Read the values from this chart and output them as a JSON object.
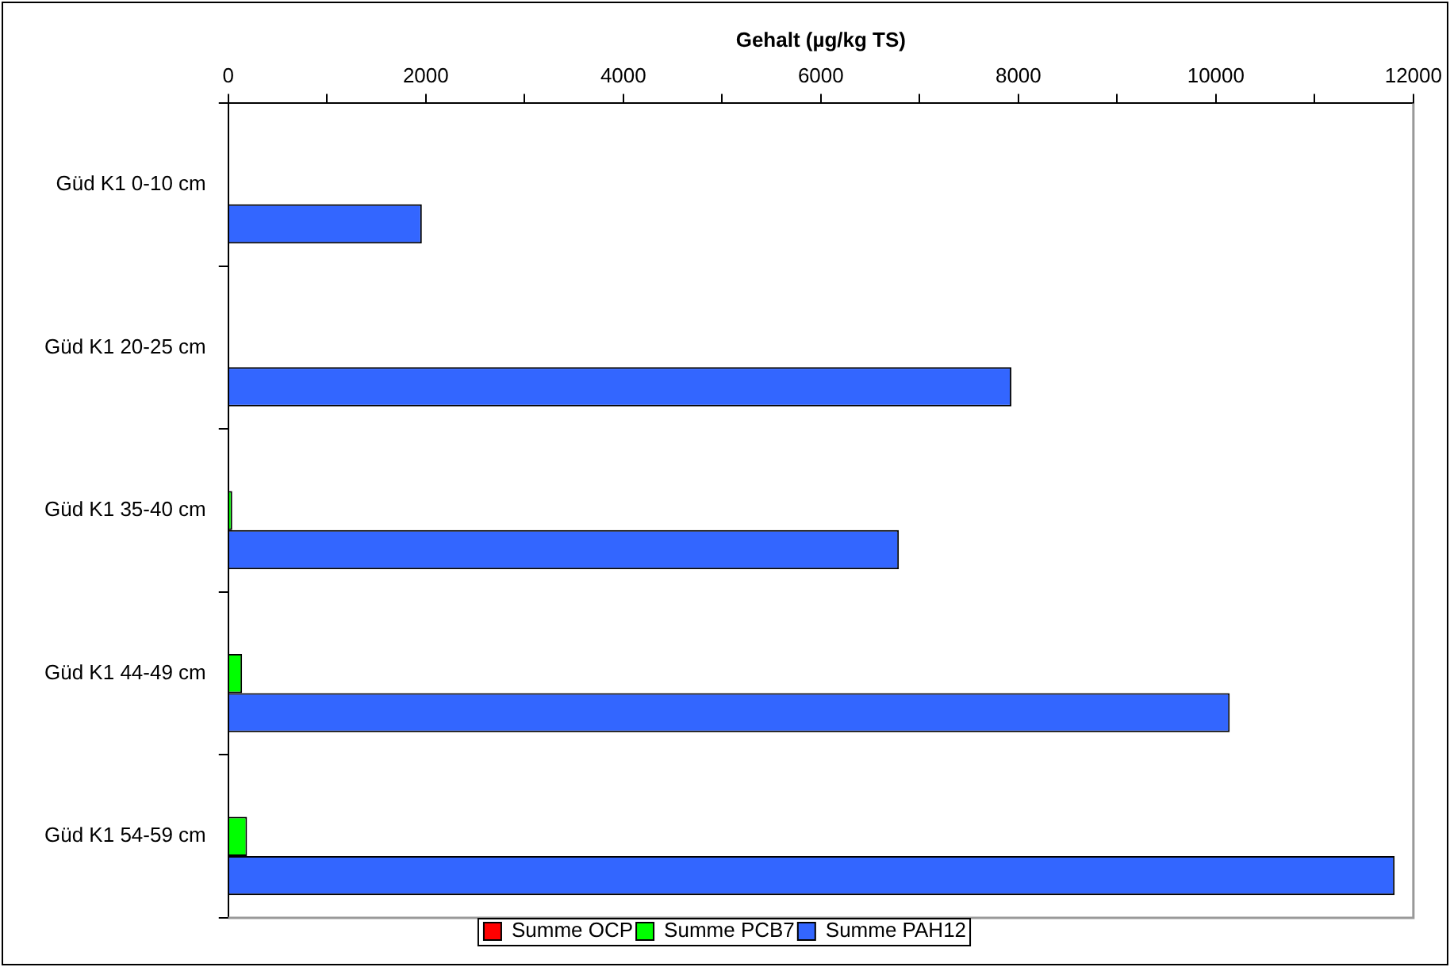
{
  "chart_data": {
    "type": "bar",
    "orientation": "horizontal",
    "xlabel": "Gehalt (µg/kg TS)",
    "categories": [
      "Güd K1 0-10 cm",
      "Güd K1 20-25 cm",
      "Güd K1 35-40 cm",
      "Güd K1 44-49 cm",
      "Güd K1 54-59 cm"
    ],
    "series": [
      {
        "name": "Summe OCP",
        "color": "#ff0000",
        "values": [
          0,
          0,
          0,
          0,
          0
        ]
      },
      {
        "name": "Summe PCB7",
        "color": "#00ff00",
        "values": [
          0,
          null,
          40,
          140,
          190
        ]
      },
      {
        "name": "Summe PAH12",
        "color": "#3366ff",
        "values": [
          1960,
          7930,
          6790,
          10140,
          11810
        ]
      }
    ],
    "xlim": [
      0,
      12000
    ],
    "xticks": [
      0,
      {
        "value": 1000,
        "label": null
      },
      2000,
      {
        "value": 3000,
        "label": null
      },
      4000,
      {
        "value": 5000,
        "label": null
      },
      6000,
      {
        "value": 7000,
        "label": null
      },
      8000,
      {
        "value": 9000,
        "label": null
      },
      10000,
      {
        "value": 11000,
        "label": null
      },
      12000
    ],
    "grid": false,
    "legend": "bottom"
  }
}
